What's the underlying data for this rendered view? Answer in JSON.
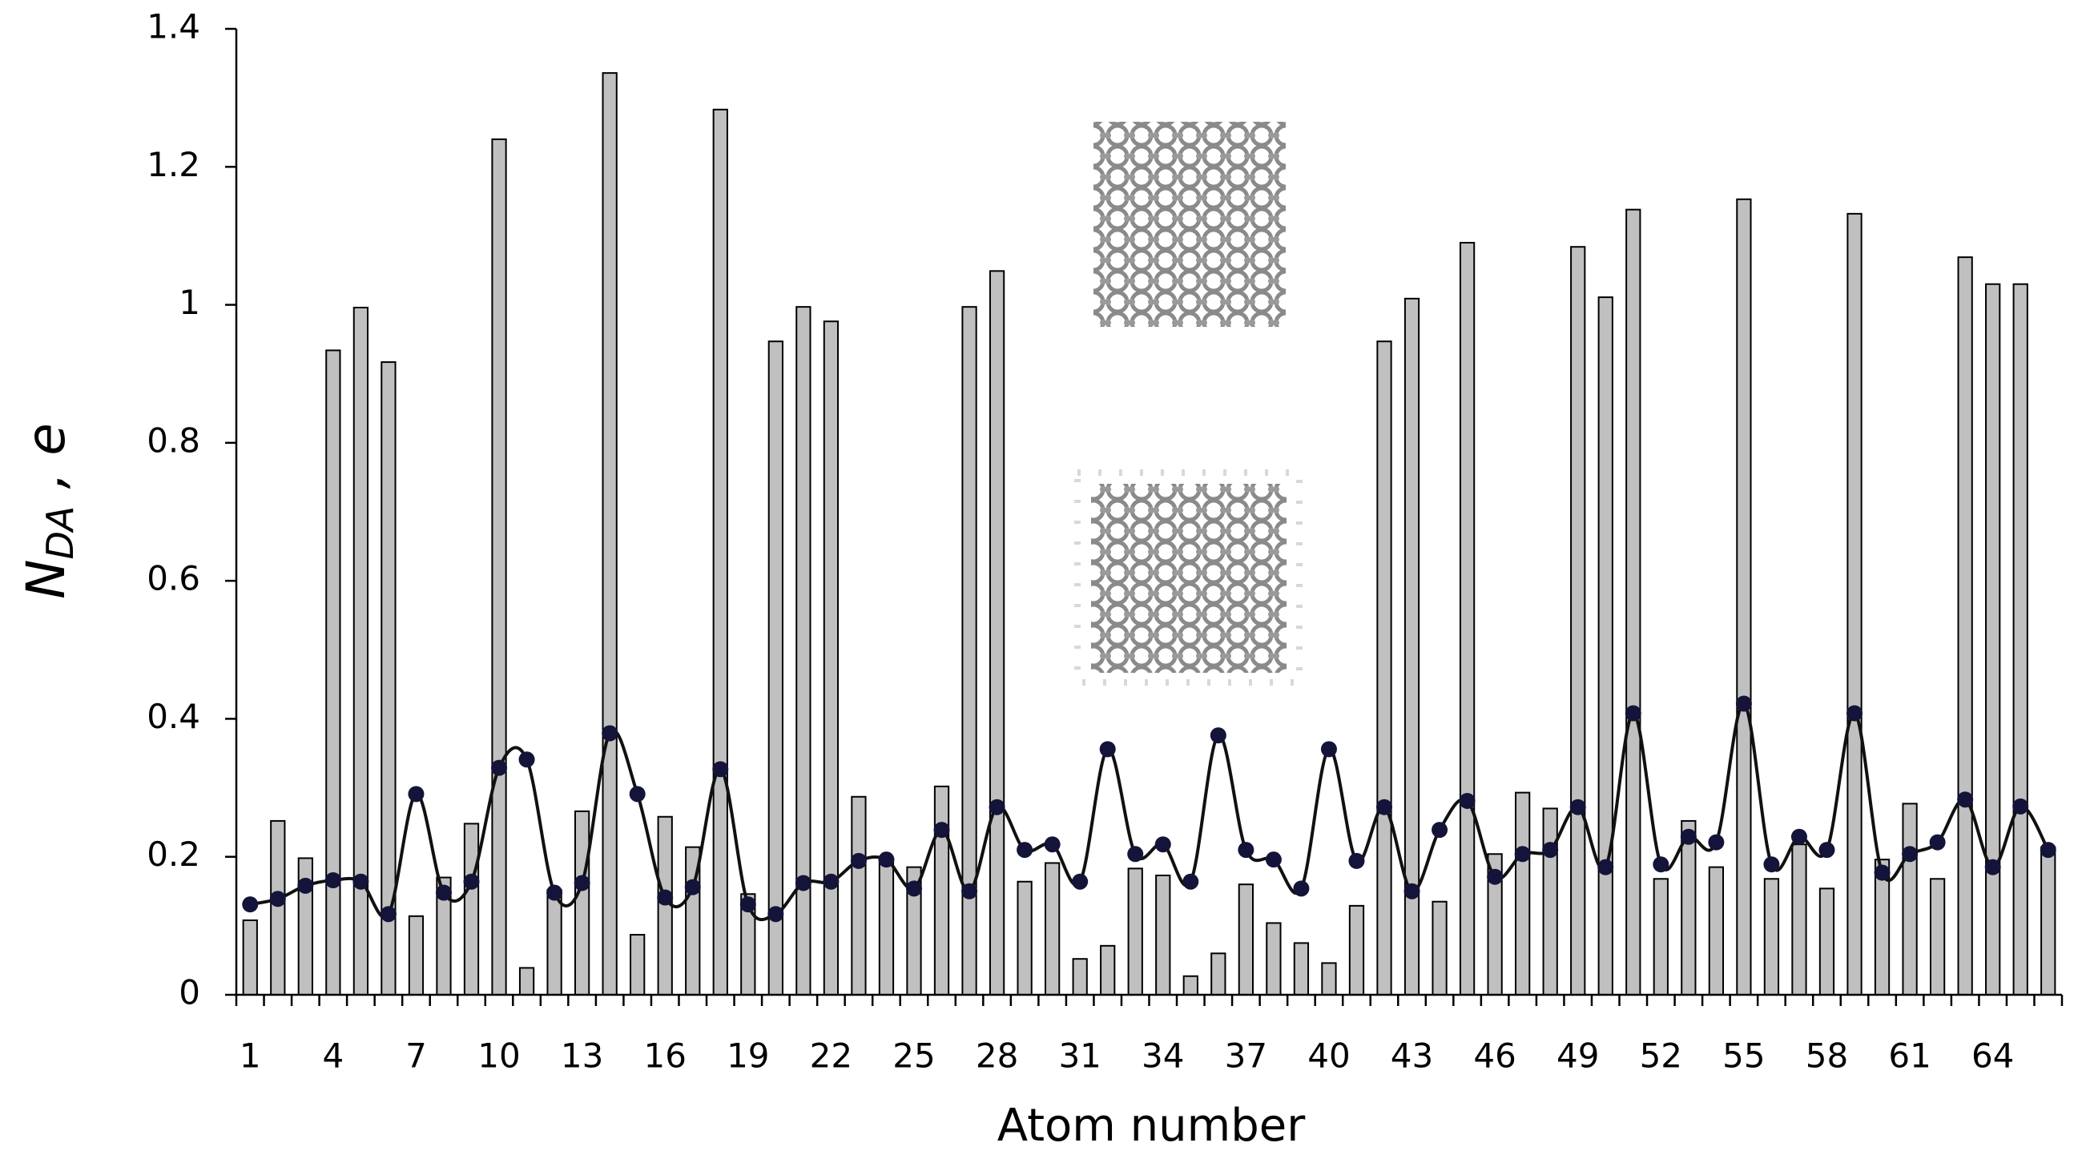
{
  "chart_data": {
    "type": "combo",
    "xlabel": "Atom number",
    "ylabel": {
      "main": "N",
      "sub": "DA",
      "rest": " ,  e"
    },
    "categories": [
      "1",
      null,
      null,
      "4",
      null,
      null,
      "7",
      null,
      null,
      "10",
      null,
      null,
      "13",
      null,
      null,
      "16",
      null,
      null,
      "19",
      null,
      null,
      "22",
      null,
      null,
      "25",
      null,
      null,
      "28",
      null,
      null,
      "31",
      null,
      null,
      "34",
      null,
      null,
      "37",
      null,
      null,
      "40",
      null,
      null,
      "43",
      null,
      null,
      "46",
      null,
      null,
      "49",
      null,
      null,
      "52",
      null,
      null,
      "55",
      null,
      null,
      "58",
      null,
      null,
      "61",
      null,
      null,
      "64",
      null,
      null
    ],
    "ylim": [
      0,
      1.4
    ],
    "yticks": [
      0,
      0.2,
      0.4,
      0.6,
      0.8,
      1,
      1.2,
      1.4
    ],
    "grid": false,
    "series": [
      {
        "type": "bar",
        "color": "#c0c0c0",
        "values": [
          0.108,
          0.252,
          0.198,
          0.934,
          0.996,
          0.917,
          0.114,
          0.17,
          0.248,
          1.24,
          0.039,
          0.152,
          0.266,
          1.336,
          0.087,
          0.258,
          0.214,
          1.283,
          0.146,
          0.947,
          0.997,
          0.976,
          0.287,
          0.196,
          0.185,
          0.302,
          0.997,
          1.049,
          0.164,
          0.191,
          0.052,
          0.071,
          0.183,
          0.173,
          0.027,
          0.06,
          0.16,
          0.104,
          0.075,
          0.046,
          0.129,
          0.947,
          1.009,
          0.135,
          1.09,
          0.204,
          0.293,
          0.27,
          1.084,
          1.011,
          1.138,
          0.168,
          0.252,
          0.185,
          1.153,
          0.168,
          0.218,
          0.154,
          1.132,
          0.196,
          0.277,
          0.168,
          1.069,
          1.03,
          1.03,
          0.214
        ]
      },
      {
        "type": "line",
        "color": "#14143a",
        "values": [
          0.131,
          0.139,
          0.158,
          0.166,
          0.164,
          0.117,
          0.291,
          0.148,
          0.164,
          0.329,
          0.341,
          0.148,
          0.162,
          0.379,
          0.291,
          0.141,
          0.156,
          0.327,
          0.131,
          0.117,
          0.162,
          0.164,
          0.194,
          0.196,
          0.154,
          0.239,
          0.15,
          0.272,
          0.21,
          0.218,
          0.164,
          0.356,
          0.204,
          0.218,
          0.164,
          0.376,
          0.21,
          0.196,
          0.154,
          0.356,
          0.194,
          0.272,
          0.15,
          0.239,
          0.281,
          0.171,
          0.204,
          0.21,
          0.272,
          0.185,
          0.408,
          0.189,
          0.229,
          0.221,
          0.422,
          0.189,
          0.229,
          0.21,
          0.408,
          0.177,
          0.204,
          0.221,
          0.283,
          0.185,
          0.273,
          0.21
        ]
      }
    ]
  }
}
